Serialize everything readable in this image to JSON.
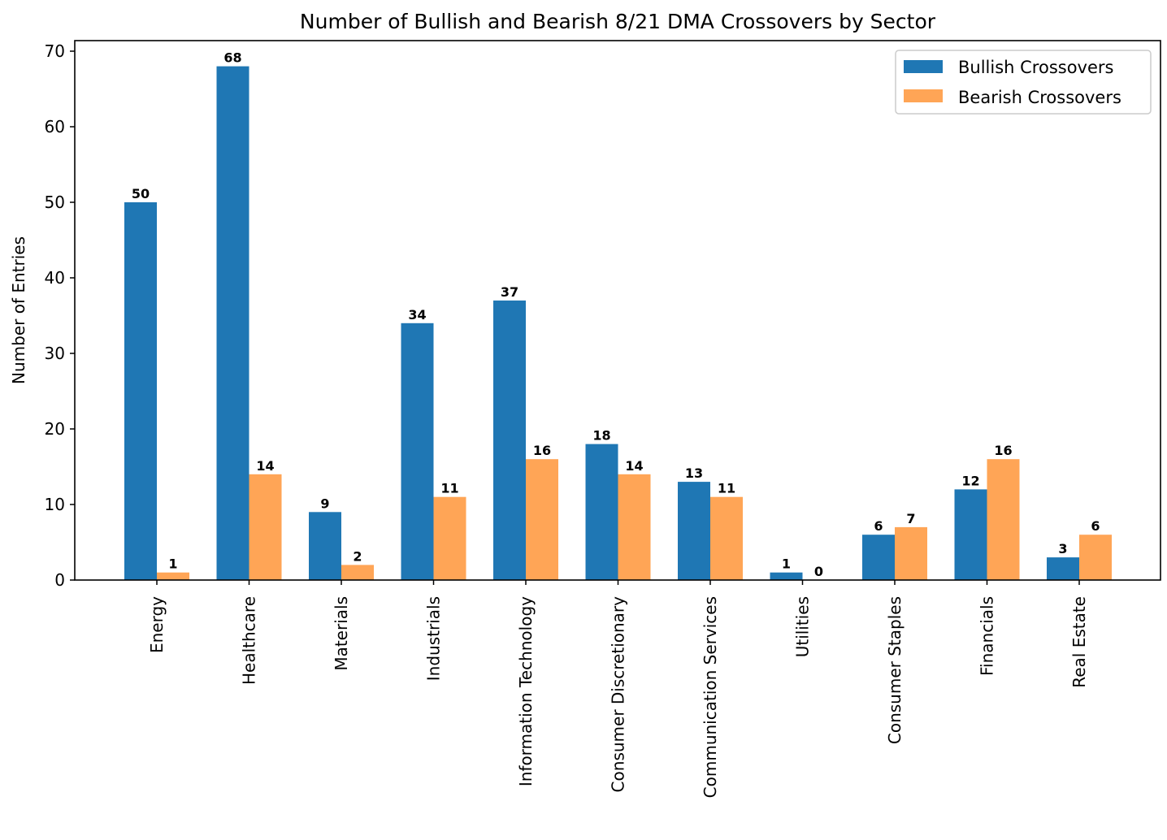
{
  "chart_data": {
    "type": "bar",
    "title": "Number of Bullish and Bearish 8/21 DMA Crossovers by Sector",
    "xlabel": "",
    "ylabel": "Number of Entries",
    "ylim": [
      0,
      71.4
    ],
    "yticks": [
      0,
      10,
      20,
      30,
      40,
      50,
      60,
      70
    ],
    "grid": false,
    "legend_position": "top-right",
    "categories": [
      "Energy",
      "Healthcare",
      "Materials",
      "Industrials",
      "Information Technology",
      "Consumer Discretionary",
      "Communication Services",
      "Utilities",
      "Consumer Staples",
      "Financials",
      "Real Estate"
    ],
    "series": [
      {
        "name": "Bullish Crossovers",
        "color": "#1f77b4",
        "values": [
          50,
          68,
          9,
          34,
          37,
          18,
          13,
          1,
          6,
          12,
          3
        ]
      },
      {
        "name": "Bearish Crossovers",
        "color": "#ffa556",
        "values": [
          1,
          14,
          2,
          11,
          16,
          14,
          11,
          0,
          7,
          16,
          6
        ]
      }
    ]
  }
}
